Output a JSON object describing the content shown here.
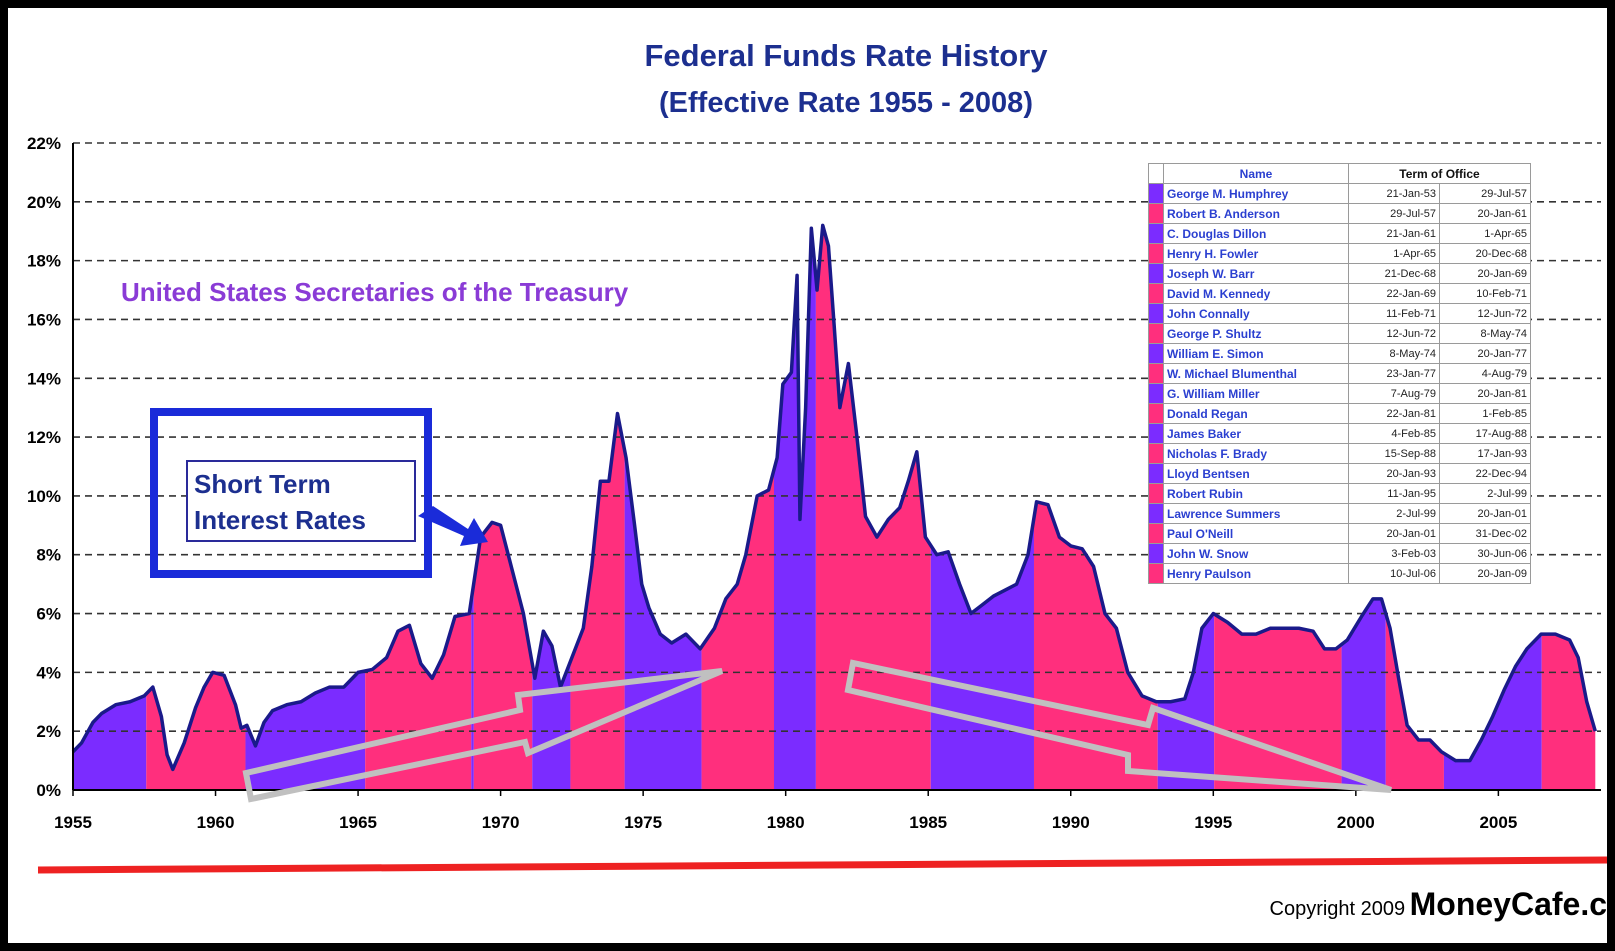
{
  "chart_data": {
    "type": "area",
    "title": "Federal Funds Rate History",
    "subtitle": "(Effective Rate 1955 - 2008)",
    "xlabel": "",
    "ylabel": "",
    "xlim": [
      1955,
      2008.6
    ],
    "ylim": [
      0,
      22
    ],
    "grid": "horizontal dashed",
    "x_ticks": [
      "1955",
      "1960",
      "1965",
      "1970",
      "1975",
      "1980",
      "1985",
      "1990",
      "1995",
      "2000",
      "2005"
    ],
    "y_ticks": [
      "0%",
      "2%",
      "4%",
      "6%",
      "8%",
      "10%",
      "12%",
      "14%",
      "16%",
      "18%",
      "20%",
      "22%"
    ],
    "series": [
      {
        "x": [
          1955.0,
          1955.3,
          1955.7,
          1956.0,
          1956.5,
          1957.0,
          1957.5,
          1957.8,
          1958.1,
          1958.3,
          1958.5,
          1958.9,
          1959.3,
          1959.6,
          1959.9,
          1960.3,
          1960.7,
          1960.9,
          1961.1,
          1961.4,
          1961.7,
          1962.0,
          1962.5,
          1963.0,
          1963.5,
          1964.0,
          1964.5,
          1965.0,
          1965.5,
          1966.0,
          1966.4,
          1966.8,
          1967.2,
          1967.6,
          1968.0,
          1968.4,
          1968.9,
          1969.3,
          1969.7,
          1970.0,
          1970.4,
          1970.8,
          1971.2,
          1971.5,
          1971.8,
          1972.1,
          1972.5,
          1972.9,
          1973.2,
          1973.5,
          1973.8,
          1974.1,
          1974.4,
          1974.7,
          1974.95,
          1975.2,
          1975.6,
          1976.0,
          1976.5,
          1977.0,
          1977.5,
          1977.9,
          1978.3,
          1978.6,
          1979.0,
          1979.4,
          1979.7,
          1979.9,
          1980.2,
          1980.4,
          1980.5,
          1980.7,
          1980.9,
          1981.1,
          1981.3,
          1981.5,
          1981.7,
          1981.9,
          1982.2,
          1982.5,
          1982.8,
          1983.2,
          1983.6,
          1984.0,
          1984.3,
          1984.6,
          1984.9,
          1985.3,
          1985.7,
          1986.1,
          1986.5,
          1986.9,
          1987.3,
          1987.7,
          1988.1,
          1988.5,
          1988.8,
          1989.2,
          1989.6,
          1990.0,
          1990.4,
          1990.8,
          1991.2,
          1991.6,
          1992.0,
          1992.5,
          1993.0,
          1993.5,
          1994.0,
          1994.3,
          1994.6,
          1995.0,
          1995.5,
          1996.0,
          1996.5,
          1997.0,
          1997.5,
          1998.0,
          1998.5,
          1998.9,
          1999.3,
          1999.7,
          2000.2,
          2000.6,
          2000.9,
          2001.2,
          2001.5,
          2001.8,
          2002.2,
          2002.6,
          2003.0,
          2003.5,
          2004.0,
          2004.4,
          2004.8,
          2005.2,
          2005.6,
          2006.0,
          2006.5,
          2007.0,
          2007.5,
          2007.8,
          2008.1,
          2008.4
        ],
        "y": [
          1.3,
          1.6,
          2.3,
          2.6,
          2.9,
          3.0,
          3.2,
          3.5,
          2.5,
          1.2,
          0.7,
          1.6,
          2.8,
          3.5,
          4.0,
          3.9,
          2.9,
          2.1,
          2.2,
          1.5,
          2.3,
          2.7,
          2.9,
          3.0,
          3.3,
          3.5,
          3.5,
          4.0,
          4.1,
          4.5,
          5.4,
          5.6,
          4.3,
          3.8,
          4.6,
          5.9,
          6.0,
          8.6,
          9.1,
          9.0,
          7.5,
          6.0,
          3.8,
          5.4,
          4.9,
          3.5,
          4.5,
          5.5,
          7.6,
          10.5,
          10.5,
          12.8,
          11.3,
          9.0,
          7.0,
          6.2,
          5.3,
          5.0,
          5.3,
          4.8,
          5.5,
          6.5,
          7.0,
          8.0,
          10.0,
          10.2,
          11.3,
          13.8,
          14.2,
          17.5,
          9.2,
          13.0,
          19.1,
          17.0,
          19.2,
          18.5,
          15.8,
          13.0,
          14.5,
          12.0,
          9.3,
          8.6,
          9.2,
          9.6,
          10.5,
          11.5,
          8.6,
          8.0,
          8.1,
          7.0,
          6.0,
          6.3,
          6.6,
          6.8,
          7.0,
          8.0,
          9.8,
          9.7,
          8.6,
          8.3,
          8.2,
          7.6,
          6.0,
          5.5,
          4.0,
          3.2,
          3.0,
          3.0,
          3.1,
          4.0,
          5.5,
          6.0,
          5.7,
          5.3,
          5.3,
          5.5,
          5.5,
          5.5,
          5.4,
          4.8,
          4.8,
          5.1,
          5.9,
          6.5,
          6.5,
          5.5,
          3.8,
          2.2,
          1.7,
          1.7,
          1.3,
          1.0,
          1.0,
          1.7,
          2.5,
          3.4,
          4.2,
          4.8,
          5.3,
          5.3,
          5.1,
          4.5,
          3.0,
          2.0
        ]
      }
    ],
    "band_colors": {
      "odd": "#7b2cff",
      "even": "#ff2f7d"
    },
    "annotations": [
      "United States Secretaries of the Treasury",
      "Short Term Interest Rates"
    ],
    "secretaries": [
      {
        "name": "George M. Humphrey",
        "start": "21-Jan-53",
        "end": "29-Jul-57"
      },
      {
        "name": "Robert B. Anderson",
        "start": "29-Jul-57",
        "end": "20-Jan-61"
      },
      {
        "name": "C. Douglas Dillon",
        "start": "21-Jan-61",
        "end": "1-Apr-65"
      },
      {
        "name": "Henry H. Fowler",
        "start": "1-Apr-65",
        "end": "20-Dec-68"
      },
      {
        "name": "Joseph W. Barr",
        "start": "21-Dec-68",
        "end": "20-Jan-69"
      },
      {
        "name": "David M. Kennedy",
        "start": "22-Jan-69",
        "end": "10-Feb-71"
      },
      {
        "name": "John Connally",
        "start": "11-Feb-71",
        "end": "12-Jun-72"
      },
      {
        "name": "George P. Shultz",
        "start": "12-Jun-72",
        "end": "8-May-74"
      },
      {
        "name": "William E. Simon",
        "start": "8-May-74",
        "end": "20-Jan-77"
      },
      {
        "name": "W. Michael Blumenthal",
        "start": "23-Jan-77",
        "end": "4-Aug-79"
      },
      {
        "name": "G. William Miller",
        "start": "7-Aug-79",
        "end": "20-Jan-81"
      },
      {
        "name": "Donald Regan",
        "start": "22-Jan-81",
        "end": "1-Feb-85"
      },
      {
        "name": "James Baker",
        "start": "4-Feb-85",
        "end": "17-Aug-88"
      },
      {
        "name": "Nicholas F. Brady",
        "start": "15-Sep-88",
        "end": "17-Jan-93"
      },
      {
        "name": "Lloyd Bentsen",
        "start": "20-Jan-93",
        "end": "22-Dec-94"
      },
      {
        "name": "Robert Rubin",
        "start": "11-Jan-95",
        "end": "2-Jul-99"
      },
      {
        "name": "Lawrence Summers",
        "start": "2-Jul-99",
        "end": "20-Jan-01"
      },
      {
        "name": "Paul O'Neill",
        "start": "20-Jan-01",
        "end": "31-Dec-02"
      },
      {
        "name": "John W. Snow",
        "start": "3-Feb-03",
        "end": "30-Jun-06"
      },
      {
        "name": "Henry Paulson",
        "start": "10-Jul-06",
        "end": "20-Jan-09"
      }
    ],
    "band_bounds": [
      1955.0,
      1957.57,
      1961.05,
      1965.25,
      1968.97,
      1969.06,
      1971.11,
      1972.45,
      1974.35,
      1977.05,
      1979.59,
      1981.06,
      1985.09,
      1988.71,
      1993.05,
      1995.03,
      1999.5,
      2001.05,
      2003.09,
      2006.52,
      2008.6
    ]
  },
  "table": {
    "col_name": "Name",
    "col_term": "Term of Office"
  },
  "callout": {
    "line1": "Short Term",
    "line2": "Interest Rates"
  },
  "footer": {
    "copyright": "Copyright 2009",
    "brand": "MoneyCafe.c"
  }
}
